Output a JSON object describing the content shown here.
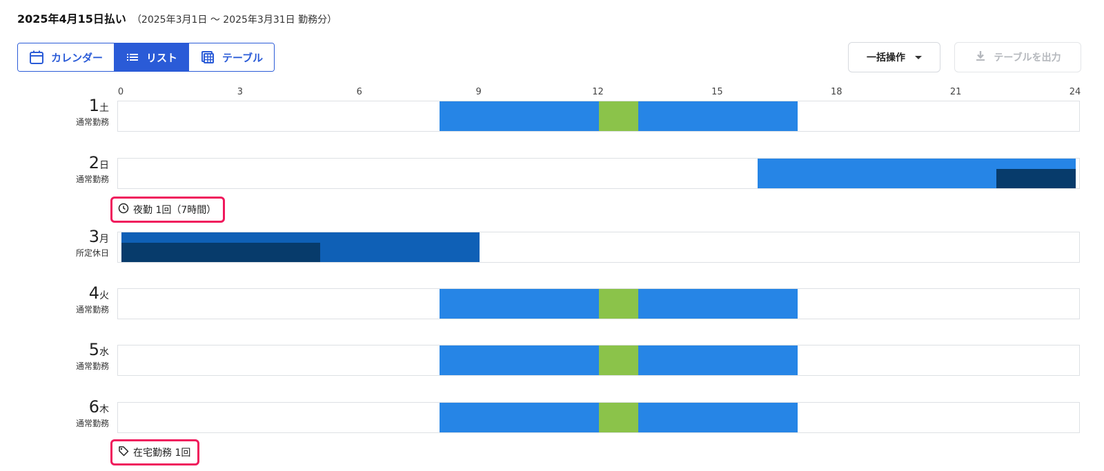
{
  "header": {
    "title": "2025年4月15日払い",
    "subtitle": "（2025年3月1日 〜 2025年3月31日 勤務分）"
  },
  "view_toggle": [
    {
      "label": "カレンダー",
      "icon": "calendar-icon",
      "active": false
    },
    {
      "label": "リスト",
      "icon": "list-icon",
      "active": true
    },
    {
      "label": "テーブル",
      "icon": "table-icon",
      "active": false
    }
  ],
  "toolbar": {
    "bulk_label": "一括操作",
    "export_label": "テーブルを出力"
  },
  "axis": {
    "ticks": [
      "0",
      "3",
      "6",
      "9",
      "12",
      "15",
      "18",
      "21",
      "24"
    ],
    "max_hours": 24
  },
  "colors": {
    "work": "#2685e6",
    "break": "#8bc34a",
    "holiday_work": "#0f60b6",
    "night": "#073b6b",
    "tag_border": "#f0185c"
  },
  "days": [
    {
      "num": "1",
      "weekday": "土",
      "type": "通常勤務",
      "segments": [
        {
          "start": 8,
          "end": 12,
          "kind": "work"
        },
        {
          "start": 12,
          "end": 13,
          "kind": "break"
        },
        {
          "start": 13,
          "end": 17,
          "kind": "work"
        }
      ],
      "tag": null
    },
    {
      "num": "2",
      "weekday": "日",
      "type": "通常勤務",
      "segments": [
        {
          "start": 16,
          "end": 24,
          "kind": "work"
        },
        {
          "start": 22,
          "end": 24,
          "kind": "night",
          "half": true
        }
      ],
      "tag": {
        "icon": "clock-icon",
        "text": "夜勤  1回（7時間）"
      }
    },
    {
      "num": "3",
      "weekday": "月",
      "type": "所定休日",
      "segments": [
        {
          "start": 0,
          "end": 9,
          "kind": "holiday_work"
        },
        {
          "start": 0,
          "end": 5,
          "kind": "night",
          "half": true
        }
      ],
      "tag": null
    },
    {
      "num": "4",
      "weekday": "火",
      "type": "通常勤務",
      "segments": [
        {
          "start": 8,
          "end": 12,
          "kind": "work"
        },
        {
          "start": 12,
          "end": 13,
          "kind": "break"
        },
        {
          "start": 13,
          "end": 17,
          "kind": "work"
        }
      ],
      "tag": null
    },
    {
      "num": "5",
      "weekday": "水",
      "type": "通常勤務",
      "segments": [
        {
          "start": 8,
          "end": 12,
          "kind": "work"
        },
        {
          "start": 12,
          "end": 13,
          "kind": "break"
        },
        {
          "start": 13,
          "end": 17,
          "kind": "work"
        }
      ],
      "tag": null
    },
    {
      "num": "6",
      "weekday": "木",
      "type": "通常勤務",
      "segments": [
        {
          "start": 8,
          "end": 12,
          "kind": "work"
        },
        {
          "start": 12,
          "end": 13,
          "kind": "break"
        },
        {
          "start": 13,
          "end": 17,
          "kind": "work"
        }
      ],
      "tag": {
        "icon": "tag-icon",
        "text": "在宅勤務  1回"
      }
    }
  ]
}
